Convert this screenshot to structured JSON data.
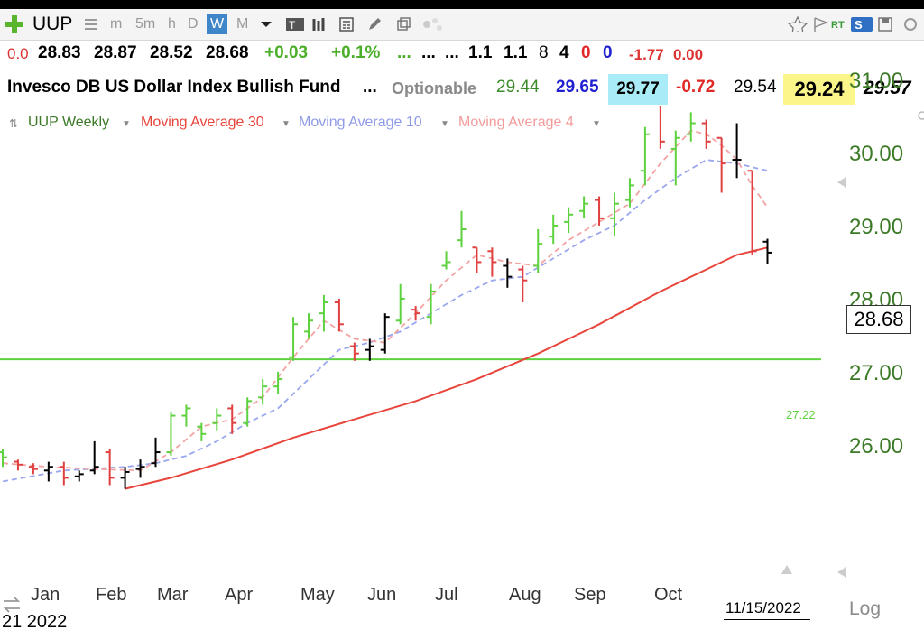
{
  "toolbar": {
    "symbol": "UUP",
    "intervals": [
      "m",
      "5m",
      "h",
      "D",
      "W",
      "M"
    ],
    "selected_interval": "W"
  },
  "quote_row1": {
    "v0": "0.0",
    "open": "28.83",
    "high": "28.87",
    "low": "28.52",
    "close": "28.68",
    "change": "+0.03",
    "change_pct": "+0.1%",
    "d1": "...",
    "d2": "...",
    "d3": "...",
    "v1": "1.1",
    "v2": "1.1",
    "v3": "8",
    "v4": "4",
    "v5": "0",
    "v6": "0",
    "v7": "-1.77",
    "v8": "0.00"
  },
  "quote_row2": {
    "name": "Invesco DB US Dollar Index Bullish Fund",
    "dots": "...",
    "optionable": "Optionable",
    "q1": "29.44",
    "q2": "29.65",
    "q3": "29.77",
    "q4": "-0.72",
    "q5": "29.54",
    "q6": "29.24",
    "q7": "29.57"
  },
  "legend": {
    "main": "UUP Weekly",
    "ma30": "Moving Average 30",
    "ma10": "Moving Average 10",
    "ma4": "Moving Average 4"
  },
  "colors": {
    "up": "#5ed23e",
    "down": "#e14040",
    "neutral": "#000000",
    "ma30": "#e8453c",
    "ma10": "#9aa6ee",
    "ma4": "#f4a3a3",
    "hline": "#5ed23e",
    "axis_text": "#3c7a28"
  },
  "price_label": "28.68",
  "hline_label": "27.22",
  "date_label": "11/15/2022",
  "log_label": "Log",
  "year_label": "21 2022",
  "chart_data": {
    "type": "ohlc",
    "title": "UUP Weekly",
    "y_ticks": [
      "26.00",
      "27.00",
      "28.00",
      "29.00",
      "30.00",
      "31.00"
    ],
    "x_ticks": [
      "Jan",
      "Feb",
      "Mar",
      "Apr",
      "May",
      "Jun",
      "Jul",
      "Aug",
      "Sep",
      "Oct"
    ],
    "ylim": [
      25.4,
      31.3
    ],
    "horizontal_line": 27.22,
    "last_close": 28.68,
    "bars": [
      {
        "week": 1,
        "o": 25.95,
        "h": 26.0,
        "l": 25.75,
        "c": 25.88,
        "dir": "up"
      },
      {
        "week": 2,
        "o": 25.82,
        "h": 25.85,
        "l": 25.7,
        "c": 25.78,
        "dir": "down"
      },
      {
        "week": 3,
        "o": 25.75,
        "h": 25.8,
        "l": 25.65,
        "c": 25.72,
        "dir": "down"
      },
      {
        "week": 4,
        "o": 25.7,
        "h": 25.82,
        "l": 25.55,
        "c": 25.75,
        "dir": "neutral"
      },
      {
        "week": 5,
        "o": 25.75,
        "h": 25.82,
        "l": 25.5,
        "c": 25.6,
        "dir": "down"
      },
      {
        "week": 6,
        "o": 25.62,
        "h": 25.7,
        "l": 25.55,
        "c": 25.65,
        "dir": "neutral"
      },
      {
        "week": 7,
        "o": 25.7,
        "h": 26.1,
        "l": 25.65,
        "c": 25.75,
        "dir": "neutral"
      },
      {
        "week": 8,
        "o": 25.95,
        "h": 26.0,
        "l": 25.5,
        "c": 25.6,
        "dir": "down"
      },
      {
        "week": 9,
        "o": 25.6,
        "h": 25.75,
        "l": 25.45,
        "c": 25.68,
        "dir": "neutral"
      },
      {
        "week": 10,
        "o": 25.72,
        "h": 25.85,
        "l": 25.6,
        "c": 25.75,
        "dir": "neutral"
      },
      {
        "week": 11,
        "o": 25.8,
        "h": 26.15,
        "l": 25.75,
        "c": 25.95,
        "dir": "neutral"
      },
      {
        "week": 12,
        "o": 25.95,
        "h": 26.5,
        "l": 25.9,
        "c": 26.45,
        "dir": "up"
      },
      {
        "week": 13,
        "o": 26.45,
        "h": 26.6,
        "l": 26.3,
        "c": 26.55,
        "dir": "up"
      },
      {
        "week": 14,
        "o": 26.3,
        "h": 26.35,
        "l": 26.1,
        "c": 26.2,
        "dir": "up"
      },
      {
        "week": 15,
        "o": 26.35,
        "h": 26.55,
        "l": 26.25,
        "c": 26.45,
        "dir": "up"
      },
      {
        "week": 16,
        "o": 26.55,
        "h": 26.6,
        "l": 26.2,
        "c": 26.35,
        "dir": "down"
      },
      {
        "week": 17,
        "o": 26.35,
        "h": 26.7,
        "l": 26.3,
        "c": 26.65,
        "dir": "up"
      },
      {
        "week": 18,
        "o": 26.7,
        "h": 26.95,
        "l": 26.6,
        "c": 26.85,
        "dir": "up"
      },
      {
        "week": 19,
        "o": 26.85,
        "h": 27.05,
        "l": 26.75,
        "c": 26.95,
        "dir": "up"
      },
      {
        "week": 20,
        "o": 27.25,
        "h": 27.8,
        "l": 27.2,
        "c": 27.7,
        "dir": "up"
      },
      {
        "week": 21,
        "o": 27.6,
        "h": 27.85,
        "l": 27.5,
        "c": 27.75,
        "dir": "up"
      },
      {
        "week": 22,
        "o": 27.85,
        "h": 28.1,
        "l": 27.6,
        "c": 28.0,
        "dir": "up"
      },
      {
        "week": 23,
        "o": 28.0,
        "h": 28.05,
        "l": 27.6,
        "c": 27.7,
        "dir": "down"
      },
      {
        "week": 24,
        "o": 27.4,
        "h": 27.45,
        "l": 27.2,
        "c": 27.3,
        "dir": "down"
      },
      {
        "week": 25,
        "o": 27.35,
        "h": 27.5,
        "l": 27.2,
        "c": 27.4,
        "dir": "neutral"
      },
      {
        "week": 26,
        "o": 27.35,
        "h": 27.85,
        "l": 27.3,
        "c": 27.8,
        "dir": "neutral"
      },
      {
        "week": 27,
        "o": 27.75,
        "h": 28.25,
        "l": 27.7,
        "c": 28.05,
        "dir": "up"
      },
      {
        "week": 28,
        "o": 27.9,
        "h": 27.95,
        "l": 27.75,
        "c": 27.85,
        "dir": "down"
      },
      {
        "week": 29,
        "o": 27.8,
        "h": 28.25,
        "l": 27.7,
        "c": 28.15,
        "dir": "up"
      },
      {
        "week": 30,
        "o": 28.5,
        "h": 28.7,
        "l": 28.45,
        "c": 28.55,
        "dir": "up"
      },
      {
        "week": 31,
        "o": 28.85,
        "h": 29.25,
        "l": 28.75,
        "c": 29.0,
        "dir": "up"
      },
      {
        "week": 32,
        "o": 28.75,
        "h": 28.75,
        "l": 28.4,
        "c": 28.55,
        "dir": "down"
      },
      {
        "week": 33,
        "o": 28.7,
        "h": 28.75,
        "l": 28.35,
        "c": 28.55,
        "dir": "down"
      },
      {
        "week": 34,
        "o": 28.5,
        "h": 28.6,
        "l": 28.2,
        "c": 28.35,
        "dir": "neutral"
      },
      {
        "week": 35,
        "o": 28.45,
        "h": 28.5,
        "l": 28.0,
        "c": 28.3,
        "dir": "down"
      },
      {
        "week": 36,
        "o": 28.5,
        "h": 29.0,
        "l": 28.4,
        "c": 28.8,
        "dir": "up"
      },
      {
        "week": 37,
        "o": 28.9,
        "h": 29.2,
        "l": 28.8,
        "c": 29.05,
        "dir": "up"
      },
      {
        "week": 38,
        "o": 29.1,
        "h": 29.3,
        "l": 28.95,
        "c": 29.2,
        "dir": "up"
      },
      {
        "week": 39,
        "o": 29.25,
        "h": 29.45,
        "l": 29.15,
        "c": 29.35,
        "dir": "up"
      },
      {
        "week": 40,
        "o": 29.4,
        "h": 29.45,
        "l": 29.05,
        "c": 29.15,
        "dir": "down"
      },
      {
        "week": 41,
        "o": 29.15,
        "h": 29.5,
        "l": 28.9,
        "c": 29.35,
        "dir": "up"
      },
      {
        "week": 42,
        "o": 29.4,
        "h": 29.7,
        "l": 29.3,
        "c": 29.6,
        "dir": "up"
      },
      {
        "week": 43,
        "o": 29.8,
        "h": 30.4,
        "l": 29.6,
        "c": 30.3,
        "dir": "up"
      },
      {
        "week": 44,
        "o": 30.75,
        "h": 30.8,
        "l": 30.1,
        "c": 30.2,
        "dir": "down"
      },
      {
        "week": 45,
        "o": 30.1,
        "h": 30.35,
        "l": 29.6,
        "c": 30.25,
        "dir": "up"
      },
      {
        "week": 46,
        "o": 30.3,
        "h": 30.6,
        "l": 30.2,
        "c": 30.45,
        "dir": "up"
      },
      {
        "week": 47,
        "o": 30.45,
        "h": 30.5,
        "l": 30.1,
        "c": 30.2,
        "dir": "down"
      },
      {
        "week": 48,
        "o": 30.25,
        "h": 30.25,
        "l": 29.5,
        "c": 29.9,
        "dir": "down"
      },
      {
        "week": 49,
        "o": 29.95,
        "h": 30.45,
        "l": 29.7,
        "c": 29.95,
        "dir": "neutral"
      },
      {
        "week": 50,
        "o": 29.8,
        "h": 29.8,
        "l": 28.65,
        "c": 28.7,
        "dir": "down"
      },
      {
        "week": 51,
        "o": 28.83,
        "h": 28.87,
        "l": 28.52,
        "c": 28.68,
        "dir": "neutral"
      }
    ],
    "series": [
      {
        "name": "Moving Average 30",
        "x": [
          9,
          12,
          16,
          20,
          24,
          28,
          32,
          36,
          40,
          44,
          47,
          49,
          51
        ],
        "values": [
          25.45,
          25.6,
          25.85,
          26.15,
          26.4,
          26.65,
          26.95,
          27.3,
          27.7,
          28.15,
          28.45,
          28.65,
          28.75
        ]
      },
      {
        "name": "Moving Average 10",
        "x": [
          1,
          5,
          9,
          11,
          13,
          15,
          17,
          19,
          21,
          23,
          25,
          27,
          29,
          31,
          33,
          35,
          37,
          39,
          41,
          43,
          45,
          47,
          49,
          51
        ],
        "values": [
          25.55,
          25.7,
          25.75,
          25.8,
          25.9,
          26.1,
          26.35,
          26.55,
          26.95,
          27.35,
          27.45,
          27.6,
          27.85,
          28.1,
          28.3,
          28.35,
          28.6,
          28.85,
          29.05,
          29.4,
          29.7,
          29.95,
          29.9,
          29.8
        ]
      },
      {
        "name": "Moving Average 4",
        "x": [
          1,
          4,
          7,
          10,
          12,
          14,
          16,
          18,
          20,
          22,
          24,
          26,
          28,
          30,
          32,
          34,
          36,
          38,
          40,
          42,
          44,
          46,
          47,
          48,
          49,
          50,
          51
        ],
        "values": [
          25.8,
          25.75,
          25.72,
          25.7,
          25.95,
          26.3,
          26.4,
          26.7,
          27.25,
          27.75,
          27.5,
          27.45,
          27.85,
          28.3,
          28.65,
          28.55,
          28.5,
          28.85,
          29.1,
          29.35,
          29.9,
          30.35,
          30.3,
          30.15,
          29.95,
          29.6,
          29.3
        ]
      }
    ]
  }
}
